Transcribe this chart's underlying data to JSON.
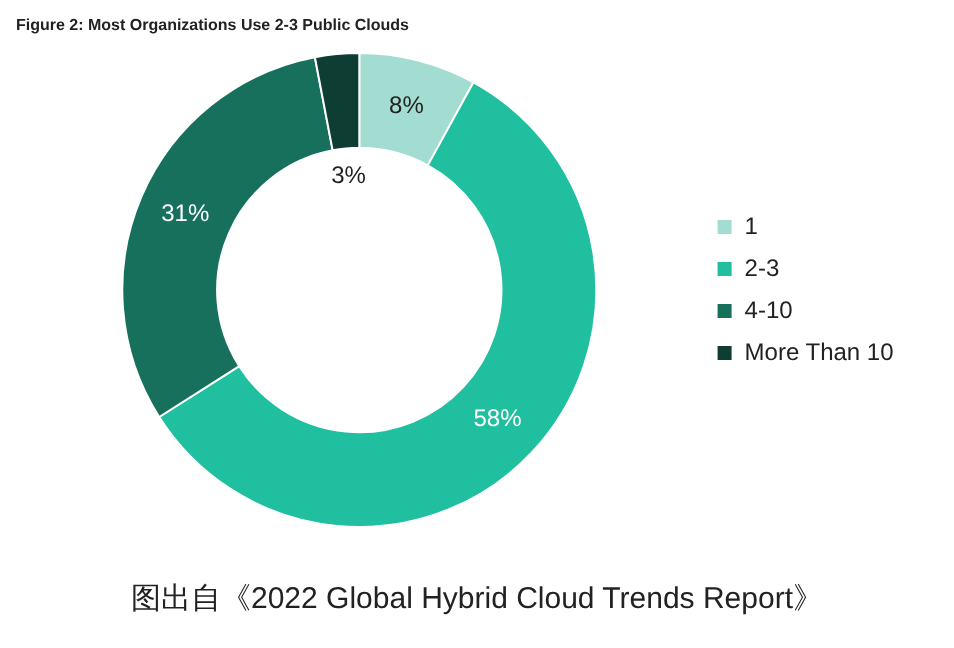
{
  "chart_data": {
    "type": "donut",
    "title": "Figure 2: Most Organizations Use 2-3 Public Clouds",
    "categories": [
      "1",
      "2-3",
      "4-10",
      "More Than 10"
    ],
    "values": [
      8,
      58,
      31,
      3
    ],
    "colors": [
      "#a3dcd0",
      "#1fbfa0",
      "#16705c",
      "#0d3d33"
    ],
    "value_labels": [
      "8%",
      "58%",
      "31%",
      "3%"
    ],
    "legend": "right",
    "annotations": [
      "图出自《2022 Global Hybrid Cloud Trends Report》"
    ]
  }
}
